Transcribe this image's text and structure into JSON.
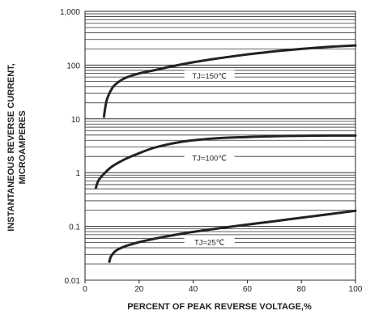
{
  "chart_data": {
    "type": "line",
    "title": "",
    "xlabel": "PERCENT OF PEAK REVERSE VOLTAGE,%",
    "ylabel_line1": "INSTANTANEOUS REVERSE CURRENT,",
    "ylabel_line2": "MICROAMPERES",
    "xlim": [
      0,
      100
    ],
    "ylim": [
      0.01,
      1000
    ],
    "yscale": "log",
    "grid": "horizontal log-minor lines",
    "xticks": [
      {
        "value": 0,
        "label": "0"
      },
      {
        "value": 20,
        "label": "20"
      },
      {
        "value": 40,
        "label": "40"
      },
      {
        "value": 60,
        "label": "60"
      },
      {
        "value": 80,
        "label": "80"
      },
      {
        "value": 100,
        "label": "100"
      }
    ],
    "yticks": [
      {
        "value": 1000,
        "label": "1,000"
      },
      {
        "value": 100,
        "label": "100"
      },
      {
        "value": 10,
        "label": "10"
      },
      {
        "value": 1,
        "label": "1"
      },
      {
        "value": 0.1,
        "label": "0.1"
      },
      {
        "value": 0.01,
        "label": "0.01"
      }
    ],
    "series": [
      {
        "name": "TJ=150℃",
        "label_at": {
          "x": 46,
          "y": 62
        },
        "x": [
          7,
          8,
          10,
          12,
          15,
          20,
          25,
          30,
          40,
          50,
          60,
          70,
          80,
          90,
          100
        ],
        "y": [
          11,
          22,
          37,
          47,
          58,
          70,
          79,
          90,
          113,
          135,
          158,
          180,
          200,
          218,
          232
        ]
      },
      {
        "name": "TJ=100℃",
        "label_at": {
          "x": 46,
          "y": 1.85
        },
        "x": [
          4,
          5,
          7,
          10,
          15,
          20,
          25,
          30,
          35,
          40,
          50,
          60,
          70,
          80,
          90,
          100
        ],
        "y": [
          0.52,
          0.72,
          0.95,
          1.3,
          1.8,
          2.3,
          2.85,
          3.3,
          3.7,
          4.0,
          4.4,
          4.6,
          4.75,
          4.85,
          4.9,
          4.9
        ]
      },
      {
        "name": "TJ=25℃",
        "label_at": {
          "x": 46,
          "y": 0.05
        },
        "x": [
          9,
          9.5,
          10.5,
          12,
          15,
          20,
          25,
          30,
          40,
          50,
          60,
          70,
          80,
          90,
          100
        ],
        "y": [
          0.022,
          0.027,
          0.032,
          0.037,
          0.043,
          0.051,
          0.058,
          0.065,
          0.079,
          0.093,
          0.108,
          0.125,
          0.145,
          0.168,
          0.195
        ]
      }
    ]
  }
}
